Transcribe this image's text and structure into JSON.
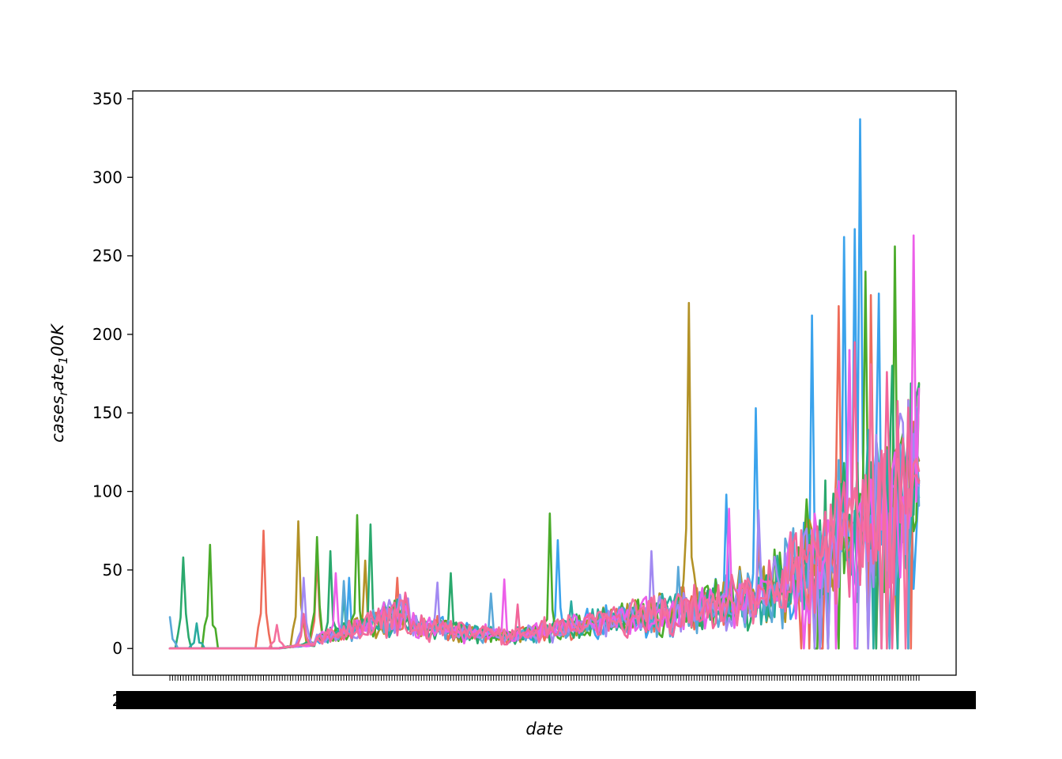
{
  "chart_data": {
    "type": "line",
    "title": "",
    "xlabel": "date",
    "ylabel": "cases_rate_100K",
    "ylabel_rendered": [
      "cases",
      "r",
      "ate",
      "1",
      "00K"
    ],
    "x": {
      "count": 281,
      "tick_labels_overlap": true,
      "tick_label_fragments": [
        "2",
        "2",
        "2",
        "2",
        "2",
        "2",
        "9"
      ]
    },
    "ylim": [
      -17,
      355
    ],
    "yticks": [
      0,
      50,
      100,
      150,
      200,
      250,
      300,
      350
    ],
    "grid": false,
    "legend": "none",
    "series": [
      {
        "color": "#3ba3ec",
        "peaks": [
          [
            60,
            63
          ],
          [
            177,
            45
          ],
          [
            255,
            69
          ],
          [
            318,
            98
          ],
          [
            329,
            153
          ],
          [
            350,
            212
          ],
          [
            362,
            262
          ],
          [
            366,
            267
          ],
          [
            368,
            337
          ],
          [
            375,
            226
          ],
          [
            390,
            107
          ]
        ]
      },
      {
        "color": "#ee6c5a",
        "peaks": [
          [
            78,
            48
          ],
          [
            145,
            75
          ],
          [
            165,
            58
          ],
          [
            195,
            45
          ],
          [
            330,
            66
          ],
          [
            360,
            218
          ],
          [
            372,
            225
          ],
          [
            384,
            96
          ]
        ]
      },
      {
        "color": "#b39227",
        "peaks": [
          [
            74,
            58
          ],
          [
            100,
            28
          ],
          [
            158,
            81
          ],
          [
            183,
            56
          ],
          [
            304,
            220
          ],
          [
            323,
            52
          ],
          [
            377,
            96
          ]
        ]
      },
      {
        "color": "#4aab2a",
        "peaks": [
          [
            62,
            60
          ],
          [
            85,
            75
          ],
          [
            125,
            66
          ],
          [
            165,
            71
          ],
          [
            180,
            85
          ],
          [
            252,
            86
          ],
          [
            348,
            95
          ],
          [
            370,
            240
          ],
          [
            381,
            256
          ],
          [
            390,
            169
          ]
        ]
      },
      {
        "color": "#2aa96d",
        "peaks": [
          [
            57,
            44
          ],
          [
            95,
            46
          ],
          [
            115,
            58
          ],
          [
            170,
            62
          ],
          [
            185,
            79
          ],
          [
            215,
            48
          ],
          [
            355,
            107
          ],
          [
            380,
            180
          ],
          [
            390,
            168
          ]
        ]
      },
      {
        "color": "#29ab9f",
        "peaks": [
          [
            60,
            17
          ],
          [
            120,
            16
          ],
          [
            175,
            34
          ],
          [
            260,
            30
          ],
          [
            340,
            40
          ],
          [
            383,
            68
          ],
          [
            390,
            46
          ]
        ]
      },
      {
        "color": "#5aa8d8",
        "peaks": [
          [
            55,
            28
          ],
          [
            110,
            20
          ],
          [
            175,
            43
          ],
          [
            230,
            35
          ],
          [
            300,
            52
          ],
          [
            360,
            120
          ],
          [
            385,
            97
          ]
        ]
      },
      {
        "color": "#a28af2",
        "peaks": [
          [
            88,
            39
          ],
          [
            160,
            45
          ],
          [
            210,
            42
          ],
          [
            290,
            62
          ],
          [
            330,
            88
          ],
          [
            364,
            190
          ],
          [
            386,
            158
          ]
        ]
      },
      {
        "color": "#ec5fe9",
        "peaks": [
          [
            82,
            25
          ],
          [
            172,
            48
          ],
          [
            235,
            44
          ],
          [
            319,
            89
          ],
          [
            342,
            74
          ],
          [
            364,
            190
          ],
          [
            388,
            263
          ]
        ]
      },
      {
        "color": "#f2659a",
        "peaks": [
          [
            75,
            22
          ],
          [
            160,
            22
          ],
          [
            240,
            28
          ],
          [
            320,
            47
          ],
          [
            366,
            195
          ],
          [
            378,
            176
          ],
          [
            390,
            100
          ]
        ]
      },
      {
        "color": "#f4709e",
        "peaks": [
          [
            70,
            12
          ],
          [
            150,
            15
          ],
          [
            250,
            20
          ],
          [
            310,
            30
          ],
          [
            372,
            181
          ],
          [
            390,
            113
          ]
        ]
      }
    ]
  }
}
